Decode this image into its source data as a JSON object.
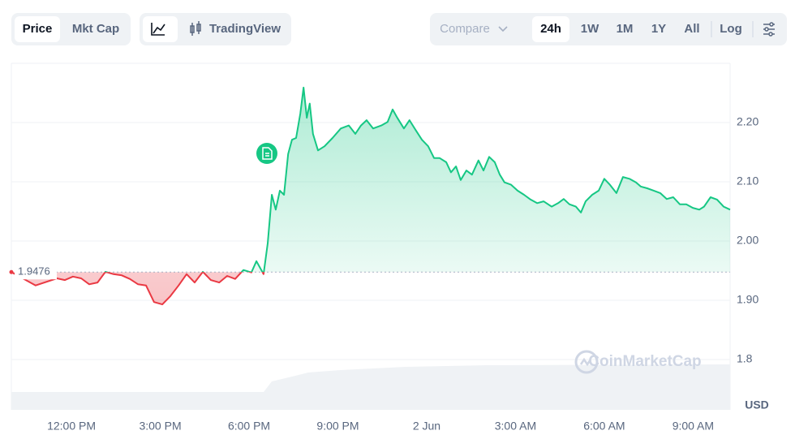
{
  "toolbar": {
    "metric_buttons": [
      "Price",
      "Mkt Cap"
    ],
    "chart_style": "TradingView",
    "compare": "Compare",
    "ranges": [
      "24h",
      "1W",
      "1M",
      "1Y",
      "All"
    ],
    "log": "Log"
  },
  "chart_data": {
    "type": "line",
    "x": [
      -2.03,
      -1.21,
      -0.49,
      -0.22,
      0.05,
      0.33,
      0.6,
      0.88,
      1.15,
      1.42,
      1.7,
      1.97,
      2.25,
      2.52,
      2.79,
      3.07,
      3.34,
      3.62,
      3.89,
      4.16,
      4.44,
      4.71,
      4.99,
      5.26,
      5.53,
      5.81,
      6.08,
      6.25,
      6.49,
      6.63,
      6.77,
      6.9,
      7.04,
      7.18,
      7.32,
      7.45,
      7.59,
      7.73,
      7.84,
      7.95,
      8.05,
      8.16,
      8.33,
      8.55,
      8.82,
      9.1,
      9.37,
      9.59,
      9.78,
      9.97,
      10.19,
      10.47,
      10.68,
      10.85,
      11.01,
      11.23,
      11.42,
      11.62,
      11.84,
      12.05,
      12.25,
      12.44,
      12.66,
      12.82,
      12.99,
      13.15,
      13.34,
      13.53,
      13.75,
      13.92,
      14.11,
      14.3,
      14.47,
      14.63,
      14.85,
      15.07,
      15.29,
      15.51,
      15.73,
      15.95,
      16.22,
      16.44,
      16.63,
      16.82,
      17.04,
      17.21,
      17.37,
      17.59,
      17.81,
      18.0,
      18.19,
      18.41,
      18.63,
      18.85,
      19.07,
      19.23,
      19.45,
      19.67,
      19.89,
      20.11,
      20.33,
      20.55,
      20.77,
      20.99,
      21.21,
      21.37,
      21.59,
      21.81,
      22.03,
      22.25
    ],
    "values": [
      1.9476,
      1.925,
      1.937,
      1.934,
      1.94,
      1.937,
      1.927,
      1.93,
      1.948,
      1.944,
      1.942,
      1.936,
      1.927,
      1.925,
      1.897,
      1.893,
      1.907,
      1.925,
      1.944,
      1.93,
      1.948,
      1.934,
      1.93,
      1.941,
      1.936,
      1.951,
      1.947,
      1.966,
      1.944,
      1.996,
      2.078,
      2.053,
      2.085,
      2.078,
      2.147,
      2.171,
      2.174,
      2.215,
      2.259,
      2.208,
      2.232,
      2.181,
      2.153,
      2.16,
      2.174,
      2.19,
      2.195,
      2.181,
      2.195,
      2.204,
      2.19,
      2.195,
      2.201,
      2.222,
      2.208,
      2.19,
      2.204,
      2.188,
      2.171,
      2.16,
      2.14,
      2.14,
      2.133,
      2.116,
      2.126,
      2.103,
      2.119,
      2.112,
      2.136,
      2.119,
      2.142,
      2.133,
      2.112,
      2.099,
      2.095,
      2.085,
      2.078,
      2.07,
      2.064,
      2.067,
      2.058,
      2.064,
      2.071,
      2.062,
      2.058,
      2.048,
      2.067,
      2.078,
      2.085,
      2.105,
      2.095,
      2.081,
      2.108,
      2.105,
      2.099,
      2.092,
      2.089,
      2.085,
      2.081,
      2.071,
      2.074,
      2.062,
      2.062,
      2.056,
      2.053,
      2.058,
      2.074,
      2.07,
      2.058,
      2.053
    ],
    "baseline": 1.9476,
    "color_up": "#16c784",
    "color_down": "#ea3943",
    "xlim": [
      -2.03,
      22.25
    ],
    "xticks": [
      {
        "value": 0,
        "label": "12:00 PM"
      },
      {
        "value": 3,
        "label": "3:00 PM"
      },
      {
        "value": 6,
        "label": "6:00 PM"
      },
      {
        "value": 9,
        "label": "9:00 PM"
      },
      {
        "value": 12,
        "label": "2 Jun"
      },
      {
        "value": 15,
        "label": "3:00 AM"
      },
      {
        "value": 18,
        "label": "6:00 AM"
      },
      {
        "value": 21,
        "label": "9:00 AM"
      }
    ],
    "ylim": [
      1.715,
      2.3
    ],
    "yticks": [
      {
        "value": 2.2,
        "label": "2.20"
      },
      {
        "value": 2.1,
        "label": "2.10"
      },
      {
        "value": 2.0,
        "label": "2.00"
      },
      {
        "value": 1.9,
        "label": "1.90"
      },
      1.8
    ],
    "grid": true,
    "unit": "USD",
    "watermark": "CoinMarketCap"
  }
}
